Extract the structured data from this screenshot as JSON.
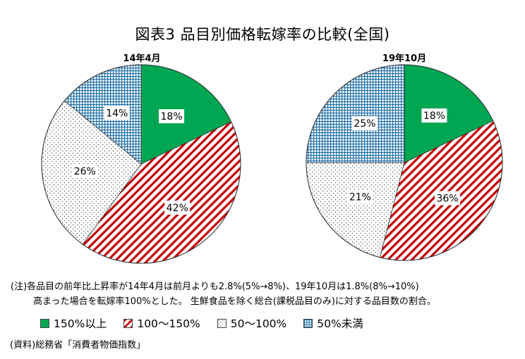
{
  "title": "図表3 品目別価格転嫁率の比較(全国)",
  "chart_data": [
    {
      "type": "pie",
      "subtitle": "14年4月",
      "categories": [
        "150%以上",
        "100〜150%",
        "50〜100%",
        "50%未満"
      ],
      "values": [
        18,
        42,
        26,
        14
      ],
      "labels": [
        "18%",
        "42%",
        "26%",
        "14%"
      ]
    },
    {
      "type": "pie",
      "subtitle": "19年10月",
      "categories": [
        "150%以上",
        "100〜150%",
        "50〜100%",
        "50%未満"
      ],
      "values": [
        18,
        36,
        21,
        25
      ],
      "labels": [
        "18%",
        "36%",
        "21%",
        "25%"
      ]
    }
  ],
  "legend": [
    "150%以上",
    "100〜150%",
    "50〜100%",
    "50%未満"
  ],
  "colors": {
    "green": "#00A651",
    "red": "#C00000",
    "dots": "#555555",
    "grid": "#1F6FA8"
  },
  "notes": [
    "(注)各品目の前年比上昇率が14年4月は前月よりも2.8%(5%→8%)、19年10月は1.8%(8%→10%)",
    "高まった場合を転嫁率100%とした。 生鮮食品を除く総合(課税品目のみ)に対する品目数の割合。"
  ],
  "source": "(資料)総務省「消費者物価指数」"
}
